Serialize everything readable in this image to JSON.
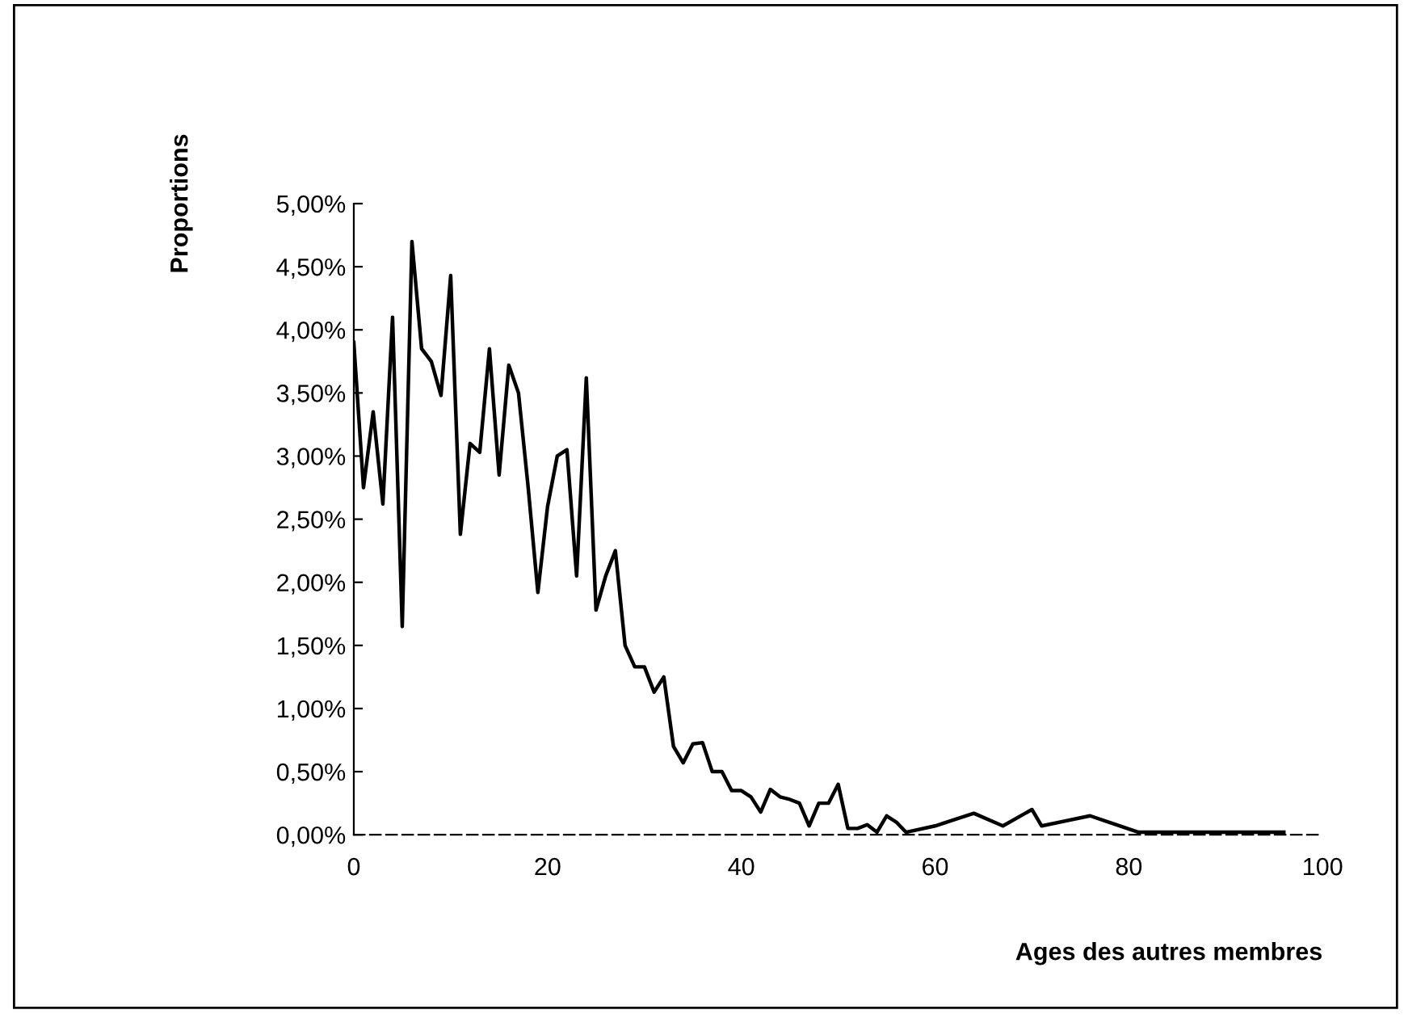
{
  "chart_data": {
    "type": "line",
    "xlabel": "Ages des autres membres",
    "ylabel": "Proportions",
    "x": [
      0,
      1,
      2,
      3,
      4,
      5,
      6,
      7,
      8,
      9,
      10,
      11,
      12,
      13,
      14,
      15,
      16,
      17,
      18,
      19,
      20,
      21,
      22,
      23,
      24,
      25,
      26,
      27,
      28,
      29,
      30,
      31,
      32,
      33,
      34,
      35,
      36,
      37,
      38,
      39,
      40,
      41,
      42,
      43,
      44,
      45,
      46,
      47,
      48,
      49,
      50,
      51,
      52,
      53,
      54,
      55,
      56,
      57,
      60,
      64,
      67,
      70,
      71,
      76,
      81,
      96
    ],
    "series": [
      {
        "color": "#000000",
        "values": [
          3.9,
          2.75,
          3.35,
          2.62,
          4.1,
          1.65,
          4.7,
          3.85,
          3.75,
          3.48,
          4.43,
          2.38,
          3.1,
          3.03,
          3.85,
          2.85,
          3.72,
          3.5,
          2.75,
          1.92,
          2.6,
          3.0,
          3.05,
          2.05,
          3.62,
          1.78,
          2.05,
          2.25,
          1.5,
          1.33,
          1.33,
          1.13,
          1.25,
          0.7,
          0.57,
          0.72,
          0.73,
          0.5,
          0.5,
          0.35,
          0.35,
          0.3,
          0.18,
          0.36,
          0.3,
          0.28,
          0.25,
          0.07,
          0.25,
          0.25,
          0.4,
          0.05,
          0.05,
          0.08,
          0.02,
          0.15,
          0.1,
          0.02,
          0.07,
          0.17,
          0.07,
          0.2,
          0.07,
          0.15,
          0.02,
          0.02
        ]
      }
    ],
    "xlim": [
      0,
      100
    ],
    "xticks": [
      0,
      20,
      40,
      60,
      80,
      100
    ],
    "ylim": [
      0,
      5
    ],
    "yticks": [
      {
        "value": 0,
        "label": "0,00%"
      },
      {
        "value": 0.5,
        "label": "0,50%"
      },
      {
        "value": 1,
        "label": "1,00%"
      },
      {
        "value": 1.5,
        "label": "1,50%"
      },
      {
        "value": 2,
        "label": "2,00%"
      },
      {
        "value": 2.5,
        "label": "2,50%"
      },
      {
        "value": 3,
        "label": "3,00%"
      },
      {
        "value": 3.5,
        "label": "3,50%"
      },
      {
        "value": 4,
        "label": "4,00%"
      },
      {
        "value": 4.5,
        "label": "4,50%"
      },
      {
        "value": 5,
        "label": "5,00%"
      }
    ],
    "grid": false,
    "legend": false,
    "marker": "none",
    "line_style": "solid"
  }
}
